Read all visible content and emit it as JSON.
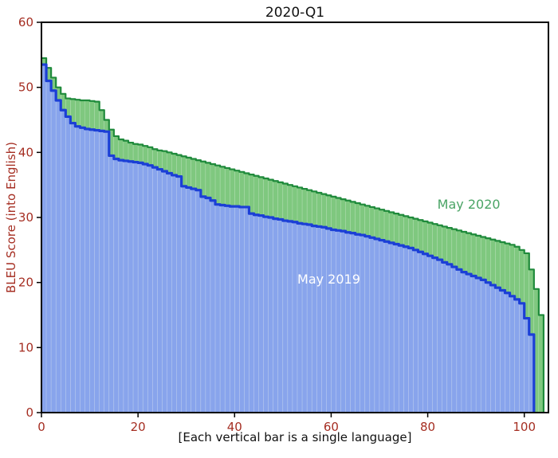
{
  "chart_data": {
    "type": "area",
    "title": "2020-Q1",
    "xlabel": "[Each vertical bar is a single language]",
    "ylabel": "BLEU Score (into English)",
    "xlim": [
      0,
      105
    ],
    "ylim": [
      0,
      60
    ],
    "x_ticks": [
      0,
      20,
      40,
      60,
      80,
      100
    ],
    "y_ticks": [
      0,
      10,
      20,
      30,
      40,
      50,
      60
    ],
    "legend_position": "annotations inside plot",
    "grid": false,
    "series": [
      {
        "name": "May 2020",
        "fill": "#7fc87f",
        "line": "#1f8a3b",
        "values": [
          54.5,
          53,
          51.5,
          50,
          49,
          48.3,
          48.2,
          48.1,
          48,
          48,
          47.9,
          47.8,
          46.5,
          45,
          43.5,
          42.5,
          42,
          41.8,
          41.5,
          41.3,
          41.2,
          41,
          40.8,
          40.5,
          40.3,
          40.2,
          40,
          39.8,
          39.6,
          39.4,
          39.2,
          39,
          38.8,
          38.6,
          38.4,
          38.2,
          38,
          37.8,
          37.6,
          37.4,
          37.2,
          37,
          36.8,
          36.6,
          36.4,
          36.2,
          36,
          35.8,
          35.6,
          35.4,
          35.2,
          35,
          34.8,
          34.6,
          34.4,
          34.2,
          34,
          33.8,
          33.6,
          33.4,
          33.2,
          33,
          32.8,
          32.6,
          32.4,
          32.2,
          32,
          31.8,
          31.6,
          31.4,
          31.2,
          31,
          30.8,
          30.6,
          30.4,
          30.2,
          30,
          29.8,
          29.6,
          29.4,
          29.2,
          29,
          28.8,
          28.6,
          28.4,
          28.2,
          28,
          27.8,
          27.6,
          27.4,
          27.2,
          27,
          26.8,
          26.6,
          26.4,
          26.2,
          26,
          25.8,
          25.5,
          25,
          24.5,
          22,
          19,
          15
        ]
      },
      {
        "name": "May 2019",
        "fill": "#88a4ec",
        "line": "#1b3fd6",
        "values": [
          53.5,
          51,
          49.5,
          48,
          46.5,
          45.5,
          44.5,
          44,
          43.8,
          43.6,
          43.5,
          43.4,
          43.3,
          43.2,
          39.5,
          39,
          38.8,
          38.7,
          38.6,
          38.5,
          38.4,
          38.2,
          38,
          37.7,
          37.4,
          37.1,
          36.8,
          36.5,
          36.3,
          34.8,
          34.6,
          34.4,
          34.2,
          33.2,
          33,
          32.6,
          32,
          31.9,
          31.8,
          31.7,
          31.7,
          31.6,
          31.6,
          30.6,
          30.4,
          30.3,
          30.1,
          30,
          29.8,
          29.7,
          29.5,
          29.4,
          29.3,
          29.1,
          29,
          28.9,
          28.7,
          28.6,
          28.5,
          28.3,
          28.1,
          28,
          27.9,
          27.7,
          27.6,
          27.4,
          27.3,
          27.1,
          26.9,
          26.7,
          26.5,
          26.3,
          26.1,
          25.9,
          25.7,
          25.5,
          25.3,
          25,
          24.7,
          24.4,
          24.1,
          23.8,
          23.5,
          23.1,
          22.8,
          22.4,
          22,
          21.6,
          21.3,
          21,
          20.7,
          20.4,
          20,
          19.6,
          19.2,
          18.8,
          18.4,
          17.9,
          17.4,
          16.8,
          14.5,
          12,
          0,
          0
        ]
      }
    ],
    "annotations": [
      {
        "text": "May 2020",
        "color": "#4aa465",
        "x": 82,
        "y": 32
      },
      {
        "text": "May 2019",
        "color": "#ffffff",
        "x": 53,
        "y": 20.5
      }
    ],
    "colors": {
      "axis": "#000000",
      "tick_labels": "#a52e22",
      "title": "#111111",
      "ylabel_color": "#a52e22",
      "xlabel_color": "#111111",
      "background": "#ffffff"
    }
  }
}
